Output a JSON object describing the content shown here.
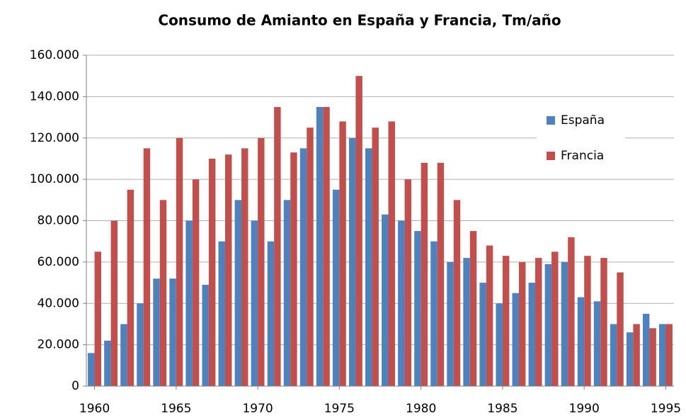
{
  "chart_data": {
    "type": "bar",
    "title": "Consumo de Amianto en España y Francia, Tm/año",
    "categories": [
      "1960",
      null,
      null,
      null,
      null,
      "1965",
      null,
      null,
      null,
      null,
      "1970",
      null,
      null,
      null,
      null,
      "1975",
      null,
      null,
      null,
      null,
      "1980",
      null,
      null,
      null,
      null,
      "1985",
      null,
      null,
      null,
      null,
      "1990",
      null,
      null,
      null,
      null,
      "1995"
    ],
    "series": [
      {
        "name": "España",
        "color": "#4f81bd",
        "values": [
          16000,
          22000,
          30000,
          40000,
          52000,
          52000,
          80000,
          49000,
          70000,
          90000,
          80000,
          70000,
          90000,
          115000,
          135000,
          95000,
          120000,
          115000,
          83000,
          80000,
          75000,
          70000,
          60000,
          62000,
          50000,
          40000,
          45000,
          50000,
          59000,
          60000,
          43000,
          41000,
          30000,
          26000,
          35000,
          30000
        ]
      },
      {
        "name": "Francia",
        "color": "#c0504d",
        "values": [
          65000,
          80000,
          95000,
          115000,
          90000,
          120000,
          100000,
          110000,
          112000,
          115000,
          120000,
          135000,
          113000,
          125000,
          135000,
          128000,
          150000,
          125000,
          128000,
          100000,
          108000,
          108000,
          90000,
          75000,
          68000,
          63000,
          60000,
          62000,
          65000,
          72000,
          63000,
          62000,
          55000,
          30000,
          28000,
          30000
        ]
      }
    ],
    "ylim": [
      0,
      160000
    ],
    "yticks": [
      0,
      {
        "value": 20000,
        "label": "20.000"
      },
      {
        "value": 40000,
        "label": "40.000"
      },
      {
        "value": 60000,
        "label": "60.000"
      },
      {
        "value": 80000,
        "label": "80.000"
      },
      {
        "value": 100000,
        "label": "100.000"
      },
      {
        "value": 120000,
        "label": "120.000"
      },
      {
        "value": 140000,
        "label": "140.000"
      },
      {
        "value": 160000,
        "label": "160.000"
      }
    ],
    "grid": true,
    "legend": "right"
  }
}
